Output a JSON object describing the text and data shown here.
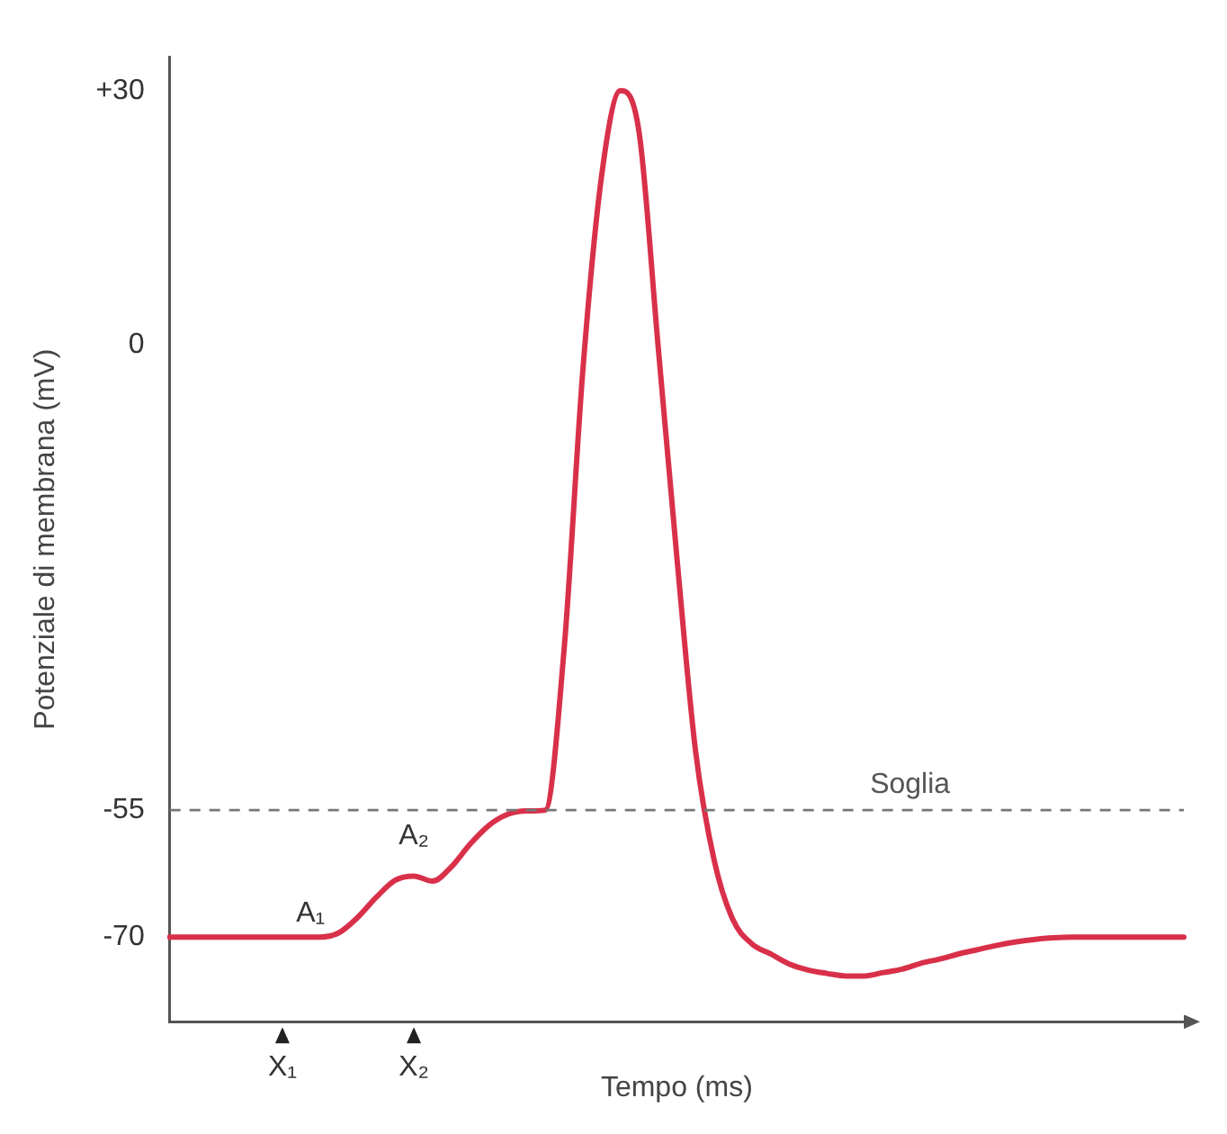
{
  "chart_data": {
    "type": "line",
    "xlabel": "Tempo (ms)",
    "ylabel": "Potenziale di membrana (mV)",
    "categories": [
      null,
      null,
      null,
      null,
      null,
      null,
      "X₁",
      null,
      null,
      null,
      null,
      null,
      null,
      "X₂",
      null,
      null,
      null,
      null,
      null,
      null,
      null,
      null,
      null,
      null,
      null,
      null,
      null,
      null,
      null,
      null,
      null,
      null,
      null,
      null,
      null,
      null,
      null,
      null,
      null,
      null,
      null,
      null,
      null,
      null,
      null,
      null,
      null,
      null,
      null,
      null,
      null,
      null,
      null,
      null,
      null
    ],
    "values": [
      -70,
      -70,
      -70,
      -70,
      -70,
      -70,
      -70,
      -70,
      -70,
      -69.5,
      -67.7,
      -65.3,
      -63.3,
      -62.8,
      -63.4,
      -61.7,
      -59,
      -56.8,
      -55.5,
      -55.1,
      -55,
      -36,
      -3,
      20,
      30,
      25,
      0,
      -25,
      -48,
      -61,
      -68,
      -70.8,
      -72,
      -73.2,
      -73.9,
      -74.3,
      -74.6,
      -74.6,
      -74.2,
      -73.8,
      -73.1,
      -72.6,
      -72,
      -71.5,
      -71,
      -70.6,
      -70.3,
      -70.1,
      -70,
      -70,
      -70,
      -70,
      -70,
      -70,
      -70
    ],
    "color": "#d9304a",
    "ylim": [
      -80,
      34
    ],
    "yticks": [
      {
        "value": 30,
        "label": "+30"
      },
      0,
      -55,
      -70
    ],
    "ref_lines": [
      {
        "axis": "y",
        "value": -55,
        "label": "Soglia",
        "color": "#777777",
        "line_style": "dashed"
      }
    ],
    "annotations": [
      {
        "text": "A₁",
        "y": -70
      },
      {
        "text": "A₂",
        "x": "X₂",
        "y": -62.8
      }
    ]
  }
}
